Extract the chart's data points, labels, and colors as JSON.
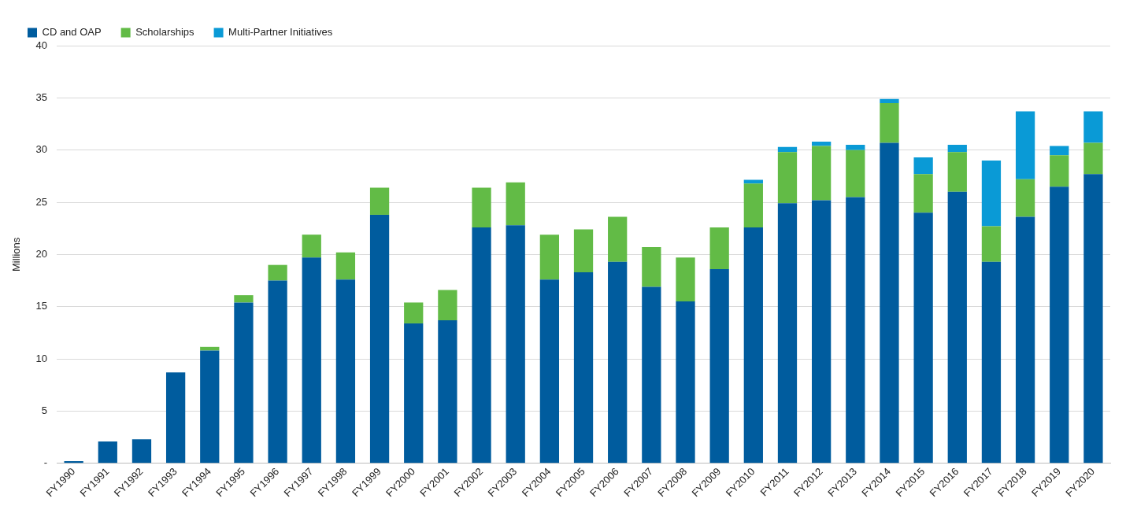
{
  "chart_data": {
    "type": "bar",
    "stacked": true,
    "ylabel": "Millions",
    "categories": [
      "FY1990",
      "FY1991",
      "FY1992",
      "FY1993",
      "FY1994",
      "FY1995",
      "FY1996",
      "FY1997",
      "FY1998",
      "FY1999",
      "FY2000",
      "FY2001",
      "FY2002",
      "FY2003",
      "FY2004",
      "FY2005",
      "FY2006",
      "FY2007",
      "FY2008",
      "FY2009",
      "FY2010",
      "FY2011",
      "FY2012",
      "FY2013",
      "FY2014",
      "FY2015",
      "FY2016",
      "FY2017",
      "FY2018",
      "FY2019",
      "FY2020"
    ],
    "series": [
      {
        "name": "CD and OAP",
        "color": "#005c9e",
        "values": [
          0.2,
          2.1,
          2.3,
          8.7,
          10.8,
          15.4,
          17.5,
          19.7,
          17.6,
          23.8,
          13.4,
          13.7,
          22.6,
          22.8,
          17.6,
          18.3,
          19.3,
          16.9,
          15.5,
          18.6,
          22.6,
          24.9,
          25.2,
          25.5,
          30.7,
          24.0,
          26.0,
          19.3,
          23.6,
          26.5,
          27.7
        ]
      },
      {
        "name": "Scholarships",
        "color": "#62bb46",
        "values": [
          null,
          null,
          null,
          null,
          0.35,
          0.7,
          1.5,
          2.2,
          2.6,
          2.6,
          2.0,
          2.9,
          3.8,
          4.1,
          4.3,
          4.1,
          4.3,
          3.8,
          4.2,
          4.0,
          4.2,
          4.9,
          5.2,
          4.5,
          3.8,
          3.7,
          3.8,
          3.4,
          3.6,
          3.0,
          3.0
        ]
      },
      {
        "name": "Multi-Partner Initiatives",
        "color": "#0a9ad6",
        "values": [
          null,
          null,
          null,
          null,
          null,
          null,
          null,
          null,
          null,
          null,
          null,
          null,
          null,
          null,
          null,
          null,
          null,
          null,
          null,
          null,
          0.35,
          0.5,
          0.4,
          0.5,
          0.4,
          1.6,
          0.7,
          6.3,
          6.5,
          0.9,
          3.0
        ]
      }
    ],
    "ylim": [
      0,
      40
    ],
    "yticks": [
      {
        "value": 0,
        "label": "-"
      },
      5,
      10,
      15,
      20,
      25,
      30,
      35,
      40
    ],
    "grid": "y",
    "legend": "top left"
  }
}
